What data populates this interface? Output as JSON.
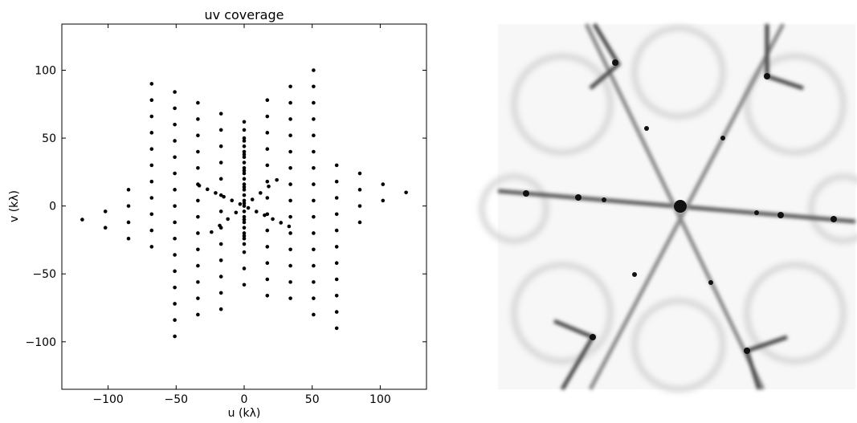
{
  "chart_data": {
    "type": "scatter",
    "title": "uv coverage",
    "x_label": "u (kλ)",
    "y_label": "v (kλ)",
    "color": "#000000",
    "x": [
      -119,
      -102,
      -102,
      -85,
      -85,
      -85,
      -85,
      -68,
      -68,
      -68,
      -68,
      -68,
      -68,
      -68,
      -68,
      -68,
      -68,
      -68,
      -51,
      -51,
      -51,
      -51,
      -51,
      -51,
      -51,
      -51,
      -51,
      -51,
      -51,
      -51,
      -51,
      -51,
      -51,
      -51,
      -34,
      -34,
      -34,
      -34,
      -34,
      -34,
      -34,
      -34,
      -34,
      -34,
      -34,
      -34,
      -34,
      -34,
      -17,
      -17,
      -17,
      -17,
      -17,
      -17,
      -17,
      -17,
      -17,
      -17,
      -17,
      -17,
      -17,
      0,
      0,
      0,
      0,
      0,
      0,
      0,
      0,
      0,
      0,
      0,
      17,
      17,
      17,
      17,
      17,
      17,
      17,
      17,
      17,
      17,
      17,
      17,
      17,
      34,
      34,
      34,
      34,
      34,
      34,
      34,
      34,
      34,
      34,
      34,
      34,
      34,
      34,
      51,
      51,
      51,
      51,
      51,
      51,
      51,
      51,
      51,
      51,
      51,
      51,
      51,
      51,
      51,
      51,
      68,
      68,
      68,
      68,
      68,
      68,
      68,
      68,
      68,
      68,
      68,
      85,
      85,
      85,
      85,
      102,
      102,
      119,
      -33,
      -27,
      -21,
      -15,
      -9,
      -3,
      3,
      9,
      15,
      21,
      27,
      33,
      -24,
      -18,
      -12,
      -6,
      6,
      12,
      18,
      24,
      0,
      0,
      0,
      0,
      0,
      0,
      0,
      0,
      0,
      0,
      0,
      0,
      0,
      0,
      0,
      0,
      0,
      0,
      0,
      0,
      0
    ],
    "values": [
      -10,
      -16,
      -4,
      -24,
      -12,
      0,
      12,
      -30,
      -18,
      -6,
      6,
      18,
      30,
      42,
      54,
      66,
      78,
      90,
      84,
      72,
      60,
      48,
      36,
      24,
      12,
      0,
      -12,
      -24,
      -36,
      -48,
      -60,
      -72,
      -84,
      -96,
      76,
      64,
      52,
      40,
      28,
      16,
      4,
      -8,
      -20,
      -32,
      -44,
      -56,
      -68,
      -80,
      68,
      56,
      44,
      32,
      20,
      8,
      -4,
      -16,
      -28,
      -40,
      -52,
      -64,
      -76,
      62,
      50,
      38,
      26,
      14,
      2,
      -10,
      -22,
      -34,
      -46,
      -58,
      78,
      66,
      54,
      42,
      30,
      18,
      6,
      -6,
      -18,
      -30,
      -42,
      -54,
      -66,
      88,
      76,
      64,
      52,
      40,
      28,
      16,
      4,
      -8,
      -20,
      -32,
      -44,
      -56,
      -68,
      100,
      88,
      76,
      64,
      52,
      40,
      28,
      16,
      4,
      -8,
      -20,
      -32,
      -44,
      -56,
      -68,
      -80,
      30,
      18,
      6,
      -6,
      -18,
      -30,
      -42,
      -54,
      -66,
      -78,
      -90,
      24,
      12,
      0,
      -12,
      16,
      4,
      10,
      15,
      12.3,
      9.6,
      6.8,
      4.1,
      1.4,
      -1.4,
      -4.1,
      -6.8,
      -9.6,
      -12.3,
      -15,
      -19.2,
      -14.4,
      -9.6,
      -4.8,
      4.8,
      9.6,
      14.4,
      19.2,
      -28,
      -24,
      -20,
      -16,
      -12,
      -8,
      -4,
      0,
      4,
      8,
      12,
      16,
      20,
      24,
      28,
      32,
      36,
      40,
      44,
      48,
      56
    ],
    "xlim": [
      -134,
      134
    ],
    "ylim": [
      -135,
      134
    ],
    "xticks": [
      {
        "value": -100,
        "label": "−100"
      },
      {
        "value": -50,
        "label": "−50"
      },
      0,
      50,
      100
    ],
    "yticks": [
      {
        "value": -100,
        "label": "−100"
      },
      {
        "value": -50,
        "label": "−50"
      },
      0,
      50,
      100
    ]
  }
}
